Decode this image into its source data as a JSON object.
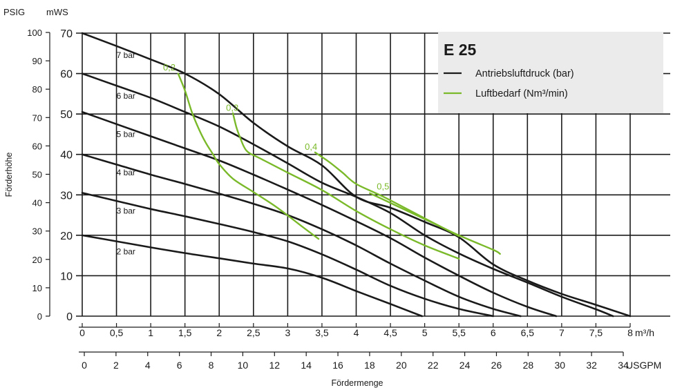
{
  "chart_data": {
    "type": "line",
    "title": "E 25",
    "xlabel": "Fördermenge",
    "ylabel": "Förderhöhe",
    "x_unit_primary": "m³/h",
    "x_unit_secondary": "USGPM",
    "y_unit_outer": "PSIG",
    "y_unit_inner": "mWS",
    "xlim": [
      0,
      8
    ],
    "ylim": [
      0,
      70
    ],
    "grid": true,
    "legend_position": "top-right",
    "legend": [
      {
        "label": "Antriebsluftdruck (bar)",
        "color": "#1a1a1a"
      },
      {
        "label": "Luftbedarf (Nm³/min)",
        "color": "#7ab929"
      }
    ],
    "x_ticks_primary": [
      "0",
      "0,5",
      "1",
      "1,5",
      "2",
      "2,5",
      "3",
      "3,5",
      "4",
      "4,5",
      "5",
      "5,5",
      "6",
      "6,5",
      "7",
      "7,5",
      "8"
    ],
    "x_ticks_secondary": [
      "0",
      "2",
      "4",
      "6",
      "8",
      "10",
      "12",
      "14",
      "16",
      "18",
      "20",
      "22",
      "24",
      "26",
      "28",
      "30",
      "32",
      "34"
    ],
    "y_ticks_inner": [
      "0",
      "10",
      "20",
      "30",
      "40",
      "50",
      "60",
      "70"
    ],
    "y_ticks_outer": [
      "0",
      "10",
      "20",
      "30",
      "40",
      "50",
      "60",
      "70",
      "80",
      "90",
      "100"
    ],
    "series": [
      {
        "name": "7 bar",
        "x": [
          0,
          0.5,
          1,
          1.5,
          2,
          2.5,
          3,
          3.5,
          4,
          4.5,
          5,
          5.5,
          6,
          6.5,
          7,
          7.5,
          8
        ],
        "y": [
          70,
          66.8,
          63.5,
          60,
          54.9,
          47.8,
          42,
          37.3,
          29.5,
          26.8,
          23.3,
          19.5,
          12.8,
          8.8,
          5.5,
          2.8,
          0
        ]
      },
      {
        "name": "6 bar",
        "x": [
          0,
          0.5,
          1,
          1.5,
          2,
          2.5,
          3,
          3.5,
          4,
          4.5,
          5,
          5.5,
          6,
          6.5,
          7,
          7.5,
          7.75
        ],
        "y": [
          60,
          57,
          54,
          50.5,
          46.9,
          42.5,
          37.8,
          33,
          29.5,
          25.5,
          20,
          15.5,
          11.7,
          8.3,
          4.8,
          1.7,
          0
        ]
      },
      {
        "name": "5 bar",
        "x": [
          0,
          0.5,
          1,
          1.5,
          2,
          2.5,
          3,
          3.5,
          4,
          4.5,
          5,
          5.5,
          6,
          6.5,
          6.92
        ],
        "y": [
          50.5,
          47.5,
          44.5,
          41.5,
          38.5,
          35,
          31.3,
          27.5,
          23.5,
          19.3,
          14.5,
          10,
          5.8,
          2.3,
          0
        ]
      },
      {
        "name": "4 bar",
        "x": [
          0,
          0.5,
          1,
          1.5,
          2,
          2.5,
          3,
          3.5,
          4,
          4.5,
          5,
          5.5,
          6,
          6.4
        ],
        "y": [
          40,
          37.5,
          35,
          32.7,
          30.3,
          27.8,
          25,
          21.5,
          17.5,
          13,
          8.8,
          4.8,
          1.8,
          0
        ]
      },
      {
        "name": "3 bar",
        "x": [
          0,
          0.5,
          1,
          1.5,
          2,
          2.5,
          3,
          3.5,
          4,
          4.5,
          5,
          5.5,
          6
        ],
        "y": [
          30.5,
          28.5,
          26.5,
          24.7,
          22.8,
          20.8,
          18.5,
          15.3,
          11.5,
          7.5,
          4.3,
          1.8,
          0
        ]
      },
      {
        "name": "2 bar",
        "x": [
          0,
          0.5,
          1,
          1.5,
          2,
          2.5,
          3,
          3.5,
          4,
          4.5,
          4.96
        ],
        "y": [
          20,
          18.5,
          17,
          15.6,
          14.3,
          13,
          11.8,
          9.5,
          6.2,
          3,
          0
        ]
      },
      {
        "name": "0,2",
        "x": [
          1.4,
          1.5,
          1.6,
          1.7,
          1.8,
          1.9,
          2.0,
          2.2,
          2.5,
          2.8,
          3.0,
          3.2,
          3.45
        ],
        "y": [
          60,
          55.8,
          50.5,
          46.4,
          43,
          40.3,
          37.6,
          34,
          30.7,
          27.4,
          24.9,
          22.3,
          19.1
        ]
      },
      {
        "name": "0,3",
        "x": [
          2.2,
          2.25,
          2.3,
          2.4,
          2.6,
          3.0,
          3.5,
          4.0,
          4.5,
          5.0,
          5.5
        ],
        "y": [
          50.2,
          46.8,
          44.4,
          40.9,
          39,
          35.5,
          31.2,
          26,
          21.5,
          17.5,
          14.2
        ]
      },
      {
        "name": "0,4",
        "x": [
          3.4,
          3.6,
          3.8,
          4.0,
          4.4,
          5.0,
          5.5
        ],
        "y": [
          40.5,
          38.2,
          35.5,
          32.7,
          29.5,
          24.2,
          19.8
        ]
      },
      {
        "name": "0,5",
        "x": [
          4.2,
          4.5,
          5.0,
          5.5,
          6.0,
          6.1
        ],
        "y": [
          30.4,
          28,
          24,
          20,
          16.4,
          15.4
        ]
      }
    ],
    "annotations": [
      {
        "text": "7 bar",
        "x": 0.5,
        "y": 64.5
      },
      {
        "text": "6 bar",
        "x": 0.5,
        "y": 54.5
      },
      {
        "text": "5 bar",
        "x": 0.5,
        "y": 45
      },
      {
        "text": "4 bar",
        "x": 0.5,
        "y": 35.5
      },
      {
        "text": "3 bar",
        "x": 0.5,
        "y": 26
      },
      {
        "text": "2 bar",
        "x": 0.5,
        "y": 16
      },
      {
        "text": "0,2",
        "x": 1.18,
        "y": 61.5
      },
      {
        "text": "0,3",
        "x": 2.1,
        "y": 51.5
      },
      {
        "text": "0,4",
        "x": 3.25,
        "y": 41.8
      },
      {
        "text": "0,5",
        "x": 4.3,
        "y": 32
      }
    ]
  }
}
